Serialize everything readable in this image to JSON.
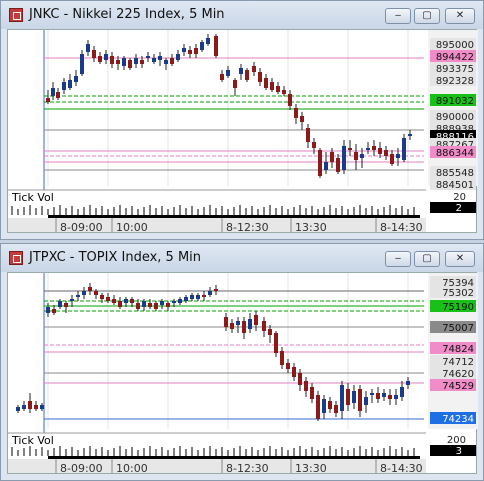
{
  "colors": {
    "bg_window": "#dde6f0",
    "plot_bg": "#ffffff",
    "candle_up": "#1a3a8a",
    "candle_down": "#8b1a1a",
    "green_line": "#00a000",
    "pink_line": "#e080c0",
    "blue_line": "#3a6ad8",
    "last_price_bg": "#000000"
  },
  "window_buttons": {
    "minimize_icon": "minimize-icon",
    "maximize_icon": "maximize-icon",
    "close_icon": "close-icon"
  },
  "windows": [
    {
      "title": "JNKC - Nikkei 225 Index, 5 Min",
      "volume_label": "Tick Vol",
      "volume_scale": [
        "20",
        "2"
      ],
      "time_labels": [
        "8-09:00",
        "10:00",
        "8-12:30",
        "13:30",
        "8-14:30"
      ],
      "price_scale": [
        {
          "text": "895000",
          "style": "plain"
        },
        {
          "text": "894422",
          "style": "pink"
        },
        {
          "text": "893375",
          "style": "plain"
        },
        {
          "text": "892328",
          "style": "plain"
        },
        {
          "text": "891032",
          "style": "green"
        },
        {
          "text": "890000",
          "style": "plain"
        },
        {
          "text": "888938",
          "style": "plain"
        },
        {
          "text": "888116",
          "style": "black"
        },
        {
          "text": "887267",
          "style": "plain"
        },
        {
          "text": "886344",
          "style": "pink"
        },
        {
          "text": "885548",
          "style": "plain"
        },
        {
          "text": "884501",
          "style": "plain"
        }
      ]
    },
    {
      "title": "JTPXC - TOPIX Index, 5 Min",
      "volume_label": "Tick Vol",
      "volume_scale": [
        "200",
        "3"
      ],
      "time_labels": [
        "8-09:00",
        "10:00",
        "8-12:30",
        "13:30",
        "8-14:30"
      ],
      "price_scale": [
        {
          "text": "75394",
          "style": "plain"
        },
        {
          "text": "75302",
          "style": "plain"
        },
        {
          "text": "75190",
          "style": "green"
        },
        {
          "text": "75007",
          "style": "gray"
        },
        {
          "text": "74824",
          "style": "pink"
        },
        {
          "text": "74712",
          "style": "plain"
        },
        {
          "text": "74620",
          "style": "plain"
        },
        {
          "text": "74529",
          "style": "pink"
        },
        {
          "text": "74234",
          "style": "blue"
        }
      ]
    }
  ]
}
